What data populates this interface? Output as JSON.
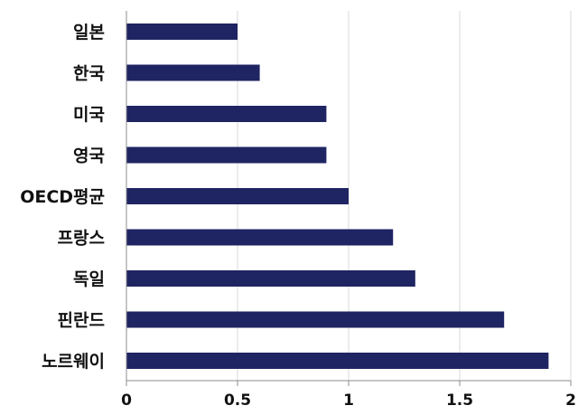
{
  "chart_data": {
    "type": "bar",
    "orientation": "horizontal",
    "categories": [
      "일본",
      "한국",
      "미국",
      "영국",
      "OECD평균",
      "프랑스",
      "독일",
      "핀란드",
      "노르웨이"
    ],
    "values": [
      0.5,
      0.6,
      0.9,
      0.9,
      1.0,
      1.2,
      1.3,
      1.7,
      1.9
    ],
    "xlim": [
      0,
      2
    ],
    "xticks": [
      "0",
      "0.5",
      "1",
      "1.5",
      "2"
    ],
    "grid": true,
    "bar_color": "#1f2462",
    "grid_color": "#d9d9d9",
    "axis_color": "#8c8c8c"
  }
}
